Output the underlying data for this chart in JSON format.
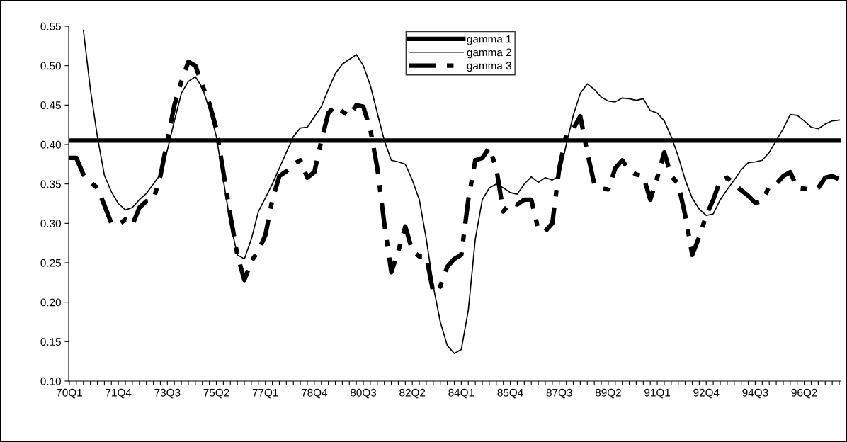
{
  "chart_data": {
    "type": "line",
    "categories": [
      "70Q1",
      null,
      null,
      null,
      null,
      null,
      null,
      "71Q4",
      null,
      null,
      null,
      null,
      null,
      null,
      "73Q3",
      null,
      null,
      null,
      null,
      null,
      null,
      "75Q2",
      null,
      null,
      null,
      null,
      null,
      null,
      "77Q1",
      null,
      null,
      null,
      null,
      null,
      null,
      "78Q4",
      null,
      null,
      null,
      null,
      null,
      null,
      "80Q3",
      null,
      null,
      null,
      null,
      null,
      null,
      "82Q2",
      null,
      null,
      null,
      null,
      null,
      null,
      "84Q1",
      null,
      null,
      null,
      null,
      null,
      null,
      "85Q4",
      null,
      null,
      null,
      null,
      null,
      null,
      "87Q3",
      null,
      null,
      null,
      null,
      null,
      null,
      "89Q2",
      null,
      null,
      null,
      null,
      null,
      null,
      "91Q1",
      null,
      null,
      null,
      null,
      null,
      null,
      "92Q4",
      null,
      null,
      null,
      null,
      null,
      null,
      "94Q3",
      null,
      null,
      null,
      null,
      null,
      null,
      "96Q2",
      null,
      null,
      null,
      null,
      null
    ],
    "series": [
      {
        "name": "gamma 1",
        "color": "#000000",
        "line_style": "solid",
        "values": [
          0.405,
          0.405,
          0.405,
          0.405,
          0.405,
          0.405,
          0.405,
          0.405,
          0.405,
          0.405,
          0.405,
          0.405,
          0.405,
          0.405,
          0.405,
          0.405,
          0.405,
          0.405,
          0.405,
          0.405,
          0.405,
          0.405,
          0.405,
          0.405,
          0.405,
          0.405,
          0.405,
          0.405,
          0.405,
          0.405,
          0.405,
          0.405,
          0.405,
          0.405,
          0.405,
          0.405,
          0.405,
          0.405,
          0.405,
          0.405,
          0.405,
          0.405,
          0.405,
          0.405,
          0.405,
          0.405,
          0.405,
          0.405,
          0.405,
          0.405,
          0.405,
          0.405,
          0.405,
          0.405,
          0.405,
          0.405,
          0.405,
          0.405,
          0.405,
          0.405,
          0.405,
          0.405,
          0.405,
          0.405,
          0.405,
          0.405,
          0.405,
          0.405,
          0.405,
          0.405,
          0.405,
          0.405,
          0.405,
          0.405,
          0.405,
          0.405,
          0.405,
          0.405,
          0.405,
          0.405,
          0.405,
          0.405,
          0.405,
          0.405,
          0.405,
          0.405,
          0.405,
          0.405,
          0.405,
          0.405,
          0.405,
          0.405,
          0.405,
          0.405,
          0.405,
          0.405,
          0.405,
          0.405,
          0.405,
          0.405,
          0.405,
          0.405,
          0.405,
          0.405,
          0.405,
          0.405,
          0.405,
          0.405,
          0.405,
          0.405,
          0.405
        ]
      },
      {
        "name": "gamma 2",
        "color": "#000000",
        "line_style": "solid",
        "values": [
          null,
          null,
          0.545,
          0.47,
          0.41,
          0.361,
          0.34,
          0.325,
          0.317,
          0.32,
          0.33,
          0.338,
          0.35,
          0.362,
          0.393,
          0.43,
          0.465,
          0.48,
          0.486,
          0.472,
          0.445,
          0.41,
          0.355,
          0.3,
          0.26,
          0.255,
          0.28,
          0.315,
          0.332,
          0.35,
          0.37,
          0.39,
          0.41,
          0.421,
          0.422,
          0.435,
          0.448,
          0.47,
          0.49,
          0.502,
          0.508,
          0.514,
          0.5,
          0.475,
          0.44,
          0.405,
          0.38,
          0.378,
          0.375,
          0.355,
          0.33,
          0.28,
          0.22,
          0.175,
          0.145,
          0.135,
          0.14,
          0.19,
          0.28,
          0.33,
          0.345,
          0.35,
          0.345,
          0.339,
          0.337,
          0.35,
          0.359,
          0.352,
          0.358,
          0.355,
          0.36,
          0.4,
          0.437,
          0.465,
          0.477,
          0.47,
          0.46,
          0.455,
          0.454,
          0.459,
          0.458,
          0.456,
          0.458,
          0.443,
          0.44,
          0.43,
          0.41,
          0.385,
          0.355,
          0.332,
          0.318,
          0.31,
          0.312,
          0.33,
          0.343,
          0.355,
          0.368,
          0.377,
          0.378,
          0.38,
          0.39,
          0.405,
          0.42,
          0.438,
          0.437,
          0.43,
          0.422,
          0.42,
          0.426,
          0.43,
          0.431
        ]
      },
      {
        "name": "gamma 3",
        "color": "#000000",
        "line_style": "dashed",
        "values": [
          0.383,
          0.383,
          0.362,
          0.352,
          0.345,
          0.323,
          0.3,
          0.298,
          0.305,
          0.298,
          0.32,
          0.328,
          0.33,
          0.36,
          0.405,
          0.45,
          0.48,
          0.505,
          0.5,
          0.475,
          0.452,
          0.42,
          0.365,
          0.31,
          0.26,
          0.228,
          0.252,
          0.265,
          0.285,
          0.33,
          0.36,
          0.366,
          0.375,
          0.38,
          0.358,
          0.365,
          0.405,
          0.44,
          0.449,
          0.442,
          0.436,
          0.45,
          0.448,
          0.419,
          0.37,
          0.3,
          0.238,
          0.265,
          0.296,
          0.265,
          0.258,
          0.258,
          0.212,
          0.22,
          0.245,
          0.255,
          0.26,
          0.33,
          0.38,
          0.383,
          0.396,
          0.37,
          0.315,
          0.326,
          0.324,
          0.33,
          0.33,
          0.292,
          0.29,
          0.3,
          0.37,
          0.412,
          0.42,
          0.436,
          0.39,
          0.35,
          0.344,
          0.343,
          0.37,
          0.38,
          0.367,
          0.362,
          0.36,
          0.33,
          0.358,
          0.39,
          0.36,
          0.35,
          0.31,
          0.26,
          0.283,
          0.31,
          0.33,
          0.355,
          0.358,
          0.35,
          0.342,
          0.335,
          0.326,
          0.328,
          0.347,
          0.35,
          0.36,
          0.365,
          0.345,
          0.344,
          0.343,
          0.345,
          0.358,
          0.36,
          0.356
        ]
      }
    ],
    "ylim": [
      0.1,
      0.55
    ],
    "yticks": [
      {
        "value": 0.1,
        "label": "0.10"
      },
      {
        "value": 0.15,
        "label": "0.15"
      },
      {
        "value": 0.2,
        "label": "0.20"
      },
      {
        "value": 0.25,
        "label": "0.25"
      },
      {
        "value": 0.3,
        "label": "0.30"
      },
      {
        "value": 0.35,
        "label": "0.35"
      },
      {
        "value": 0.4,
        "label": "0.40"
      },
      {
        "value": 0.45,
        "label": "0.45"
      },
      {
        "value": 0.5,
        "label": "0.50"
      },
      {
        "value": 0.55,
        "label": "0.55"
      }
    ],
    "grid": false,
    "legend": "top",
    "marker": "none"
  }
}
